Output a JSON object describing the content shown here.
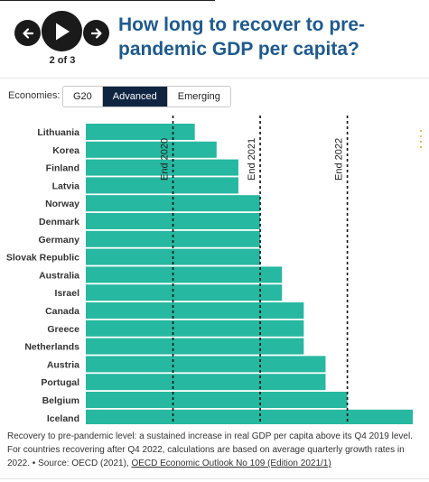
{
  "nav": {
    "counter": "2 of 3",
    "prev_icon": "arrow-left-icon",
    "play_icon": "play-icon",
    "next_icon": "arrow-right-icon"
  },
  "title": "How long to recover to pre-pandemic GDP per capita?",
  "filter": {
    "label": "Economies:",
    "tabs": [
      "G20",
      "Advanced",
      "Emerging"
    ],
    "selected": "Advanced"
  },
  "colors": {
    "bar": "#26b8a0",
    "accent_title": "#1f5a8c",
    "active_tab": "#0f2440",
    "marker_right": "#d4a017"
  },
  "chart_data": {
    "type": "bar",
    "orientation": "horizontal",
    "unit": "quarters after Q4 2019",
    "categories": [
      "Lithuania",
      "Korea",
      "Finland",
      "Latvia",
      "Norway",
      "Denmark",
      "Germany",
      "Slovak Republic",
      "Australia",
      "Israel",
      "Canada",
      "Greece",
      "Netherlands",
      "Austria",
      "Portugal",
      "Belgium",
      "Iceland"
    ],
    "values": [
      5,
      6,
      7,
      7,
      8,
      8,
      8,
      8,
      9,
      9,
      10,
      10,
      10,
      11,
      11,
      12,
      15
    ],
    "xlim": [
      0,
      15
    ],
    "reference_lines": [
      {
        "label": "End 2020",
        "value": 4
      },
      {
        "label": "End 2021",
        "value": 8
      },
      {
        "label": "End 2022",
        "value": 12
      }
    ]
  },
  "footer": {
    "text": "Recovery to pre-pandemic level: a sustained increase in real GDP per capita above its Q4 2019 level. For countries recovering after Q4 2022, calculations are based on average quarterly growth rates in 2022. • Source: OECD (2021), ",
    "link": "OECD Economic Outlook No 109 (Edition 2021/1)"
  }
}
